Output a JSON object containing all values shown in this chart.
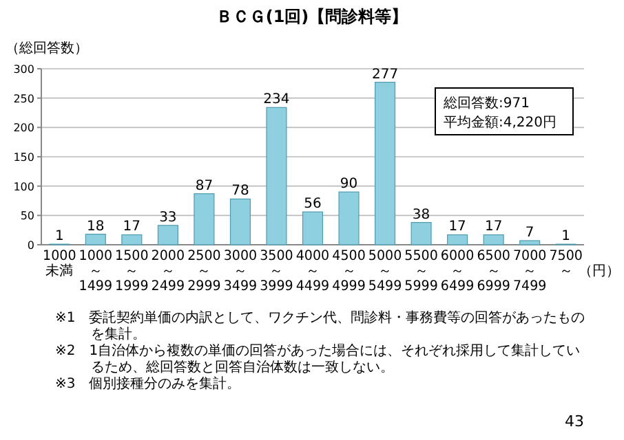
{
  "chart_data": {
    "type": "bar",
    "title": "ＢＣＧ(1回)【問診料等】",
    "ylabel": "（総回答数）",
    "xlabel": "（円）",
    "categories": [
      "1000未満",
      "1000～1499",
      "1500～1999",
      "2000～2499",
      "2500～2999",
      "3000～3499",
      "3500～3999",
      "4000～4499",
      "4500～4999",
      "5000～5499",
      "5500～5999",
      "6000～6499",
      "6500～6999",
      "7000～7499",
      "7500～"
    ],
    "values": [
      1,
      18,
      17,
      33,
      87,
      78,
      234,
      56,
      90,
      277,
      38,
      17,
      17,
      7,
      1
    ],
    "color": "#8ecfe0",
    "ylim": [
      0,
      300
    ],
    "yticks": [
      0,
      50,
      100,
      150,
      200,
      250,
      300
    ],
    "grid": "y",
    "data_labels": true,
    "annotations": [
      "総回答数:971",
      "平均金額:4,220円",
      "※1　委託契約単価の内訳として、ワクチン代、問診料・事務費等の回答があったものを集計。",
      "※2　1自治体から複数の単価の回答があった場合には、それぞれ採用して集計しているため、総回答数と回答自治体数は一致しない。",
      "※3　個別接種分のみを集計。",
      "43"
    ]
  }
}
